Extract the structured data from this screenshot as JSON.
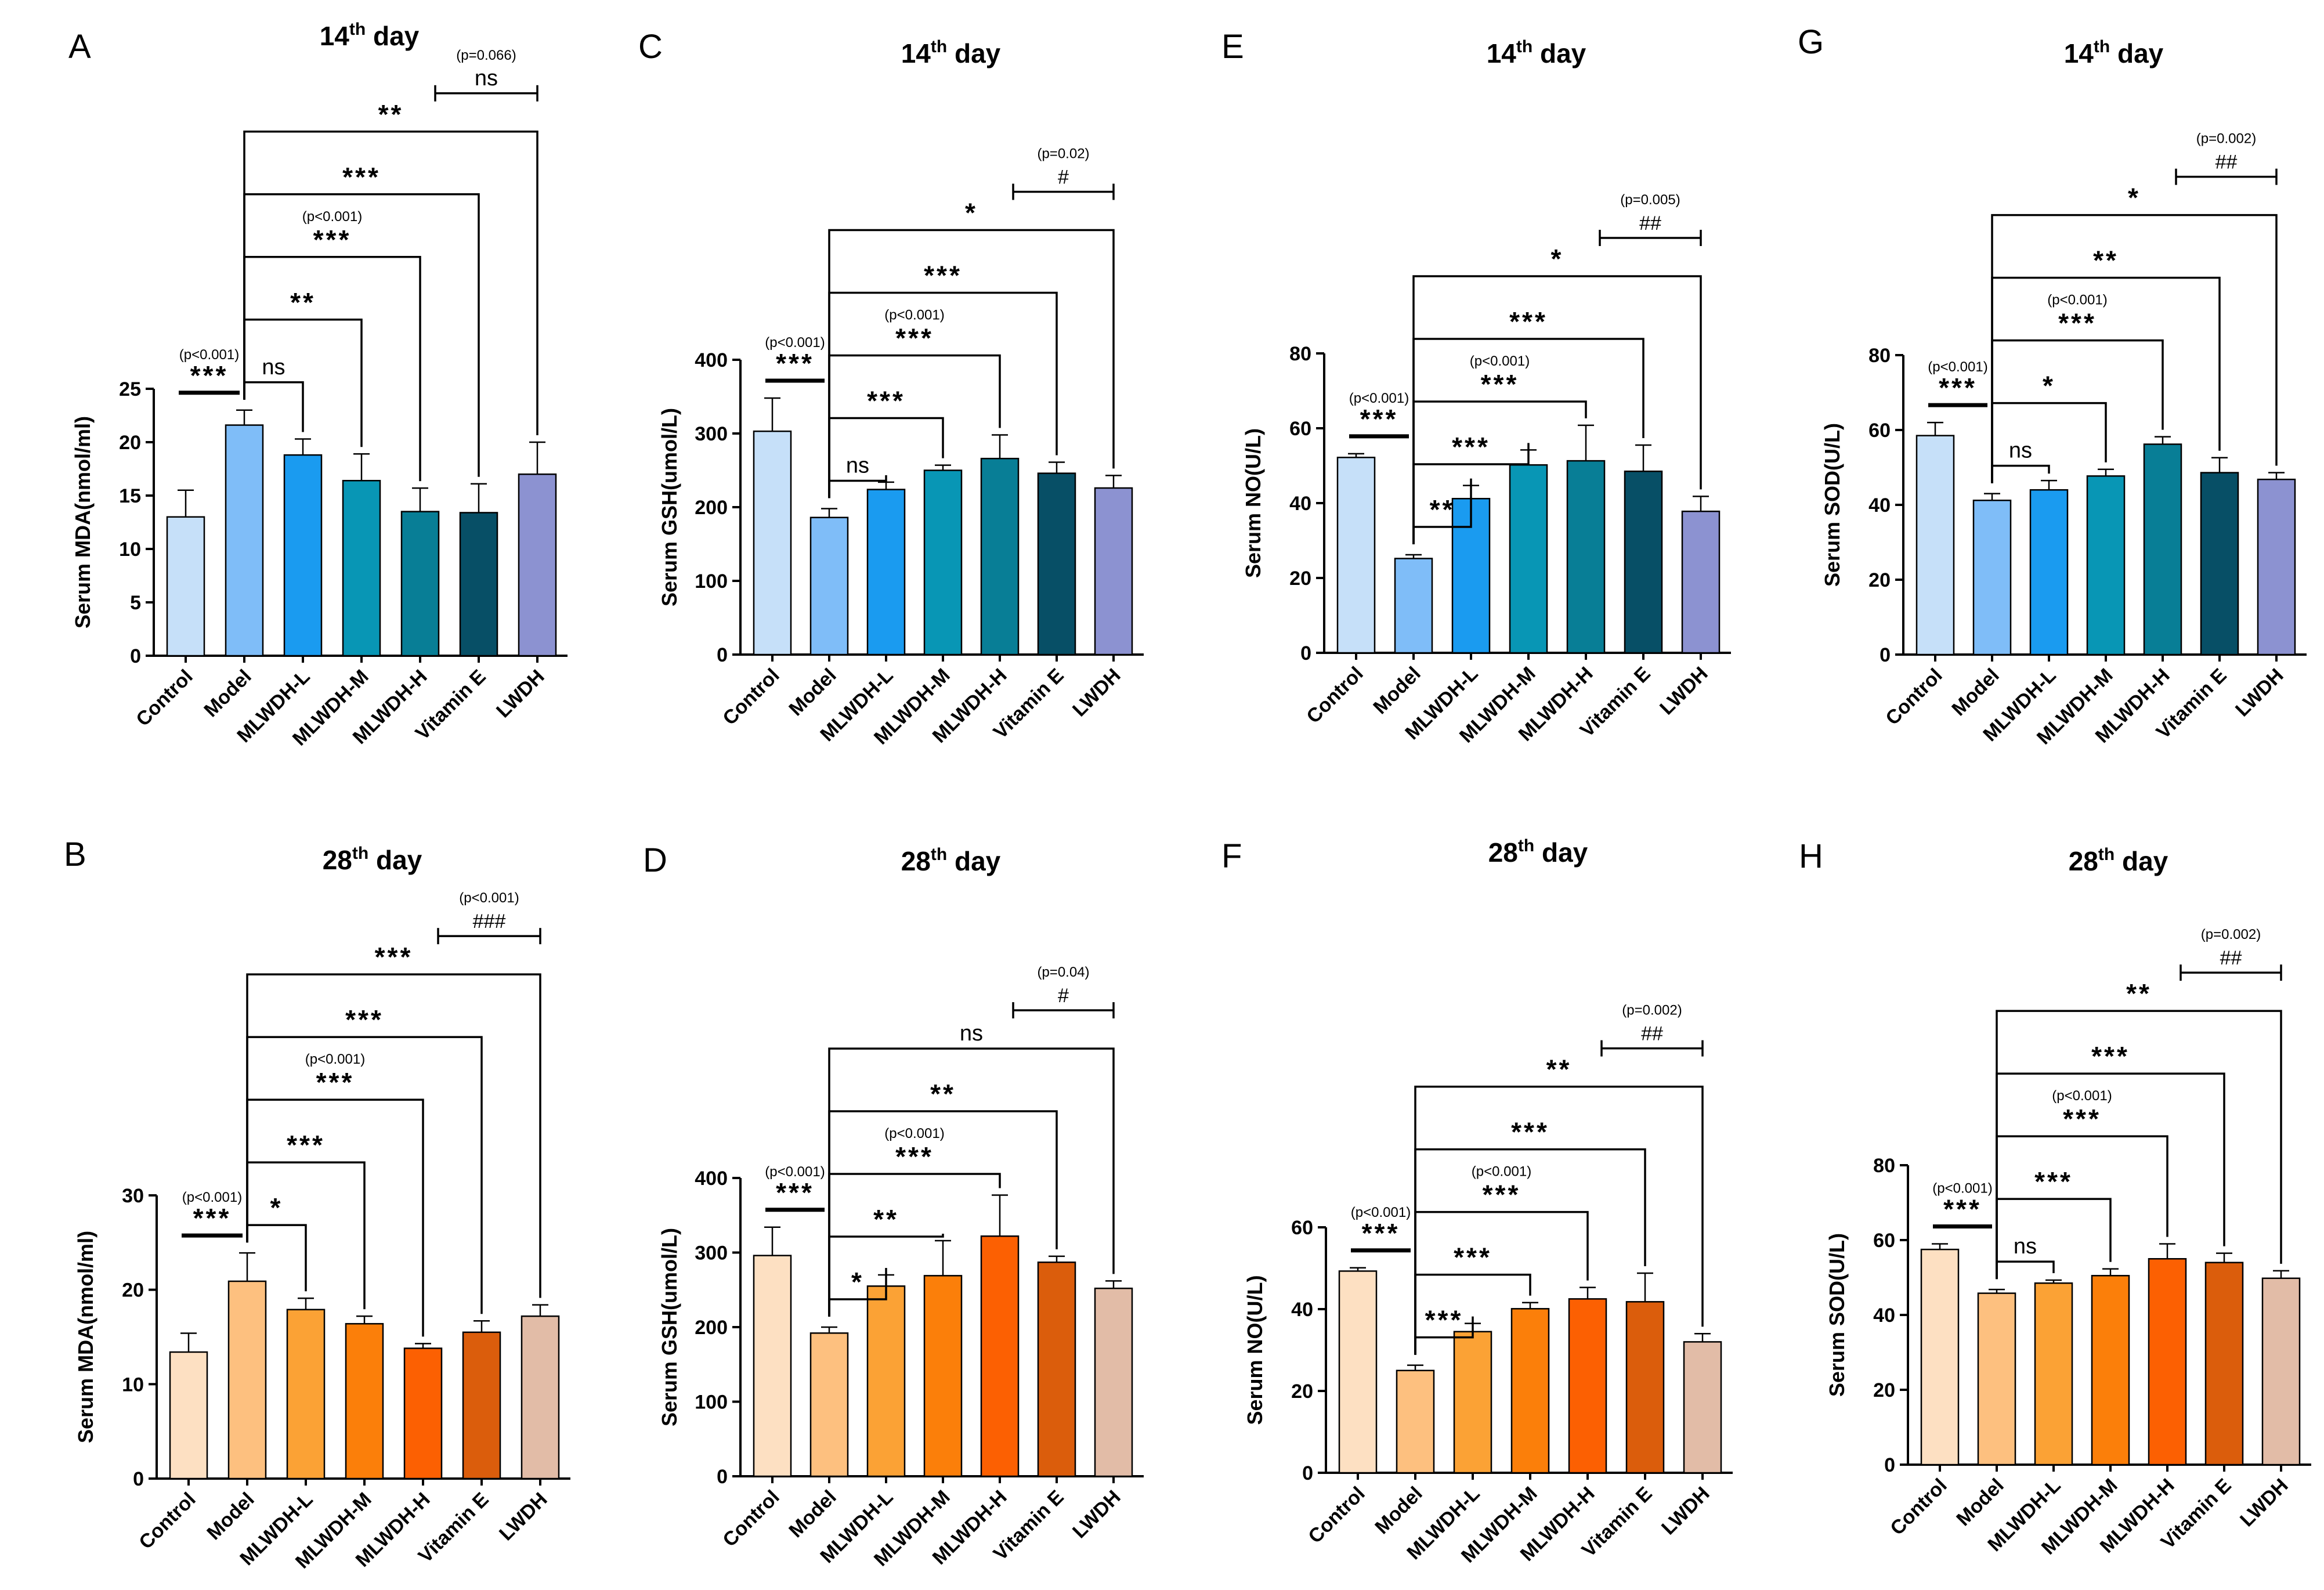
{
  "figure": {
    "categories": [
      "Control",
      "Model",
      "MLWDH-L",
      "MLWDH-M",
      "MLWDH-H",
      "Vitamin E",
      "LWDH"
    ],
    "day14_colors": [
      "#c6e0f9",
      "#7fbdf8",
      "#1a9bf0",
      "#0896b5",
      "#087e96",
      "#074f66",
      "#8c92d1"
    ],
    "day28_colors": [
      "#fde0c2",
      "#fdc07f",
      "#fba235",
      "#fb7f0a",
      "#fc6002",
      "#db5d0c",
      "#e2bca7"
    ]
  },
  "chart_data": [
    {
      "panel": "A",
      "type": "bar",
      "title": "14th day",
      "title_main": "14",
      "title_sup": "th",
      "title_rest": " day",
      "ylabel": "Serum MDA(nmol/ml)",
      "ylim": [
        0,
        25
      ],
      "yticks": [
        0,
        5,
        10,
        15,
        20,
        25
      ],
      "values": [
        13.0,
        21.6,
        18.8,
        16.4,
        13.5,
        13.4,
        17.0
      ],
      "errors": [
        2.5,
        1.4,
        1.5,
        2.5,
        2.2,
        2.7,
        3.0
      ],
      "annotations": [
        {
          "type": "control",
          "label": "***",
          "p": "(p<0.001)"
        },
        {
          "type": "model",
          "target": 2,
          "label": "ns"
        },
        {
          "type": "model",
          "target": 3,
          "label": "**"
        },
        {
          "type": "model",
          "target": 4,
          "label": "***",
          "p": "(p<0.001)"
        },
        {
          "type": "model",
          "target": 5,
          "label": "***"
        },
        {
          "type": "model",
          "target": 6,
          "label": "**"
        },
        {
          "type": "hash",
          "label": "ns",
          "p": "(p=0.066)"
        }
      ]
    },
    {
      "panel": "C",
      "type": "bar",
      "title": "14th day",
      "title_main": "14",
      "title_sup": "th",
      "title_rest": " day",
      "ylabel": "Serum GSH(umol/L)",
      "ylim": [
        0,
        400
      ],
      "yticks": [
        0,
        100,
        200,
        300,
        400
      ],
      "values": [
        303,
        186,
        224,
        250,
        266,
        246,
        226
      ],
      "errors": [
        45,
        12,
        10,
        7,
        32,
        15,
        17
      ],
      "annotations": [
        {
          "type": "control",
          "label": "***",
          "p": "(p<0.001)"
        },
        {
          "type": "model",
          "target": 2,
          "label": "ns"
        },
        {
          "type": "model",
          "target": 3,
          "label": "***"
        },
        {
          "type": "model",
          "target": 4,
          "label": "***",
          "p": "(p<0.001)"
        },
        {
          "type": "model",
          "target": 5,
          "label": "***"
        },
        {
          "type": "model",
          "target": 6,
          "label": "*"
        },
        {
          "type": "hash",
          "label": "#",
          "p": "(p=0.02)"
        }
      ]
    },
    {
      "panel": "E",
      "type": "bar",
      "title": "14th day",
      "title_main": "14",
      "title_sup": "th",
      "title_rest": " day",
      "ylabel": "Serum NO(U/L)",
      "ylim": [
        0,
        80
      ],
      "yticks": [
        0,
        20,
        40,
        60,
        80
      ],
      "values": [
        52.2,
        25.2,
        41.2,
        50.2,
        51.3,
        48.5,
        37.8
      ],
      "errors": [
        1.0,
        1.0,
        3.5,
        4.0,
        9.5,
        7.0,
        4.0
      ],
      "annotations": [
        {
          "type": "control",
          "label": "***",
          "p": "(p<0.001)"
        },
        {
          "type": "model",
          "target": 2,
          "label": "**"
        },
        {
          "type": "model",
          "target": 3,
          "label": "***"
        },
        {
          "type": "model",
          "target": 4,
          "label": "***",
          "p": "(p<0.001)"
        },
        {
          "type": "model",
          "target": 5,
          "label": "***"
        },
        {
          "type": "model",
          "target": 6,
          "label": "*"
        },
        {
          "type": "hash",
          "label": "##",
          "p": "(p=0.005)"
        }
      ]
    },
    {
      "panel": "G",
      "type": "bar",
      "title": "14th day",
      "title_main": "14",
      "title_sup": "th",
      "title_rest": " day",
      "ylabel": "Serum SOD(U/L)",
      "ylim": [
        0,
        80
      ],
      "yticks": [
        0,
        20,
        40,
        60,
        80
      ],
      "values": [
        58.5,
        41.2,
        44.0,
        47.7,
        56.2,
        48.6,
        46.8
      ],
      "errors": [
        3.5,
        1.8,
        2.5,
        1.8,
        2.0,
        4.0,
        1.8
      ],
      "annotations": [
        {
          "type": "control",
          "label": "***",
          "p": "(p<0.001)"
        },
        {
          "type": "model",
          "target": 2,
          "label": "ns"
        },
        {
          "type": "model",
          "target": 3,
          "label": "*"
        },
        {
          "type": "model",
          "target": 4,
          "label": "***",
          "p": "(p<0.001)"
        },
        {
          "type": "model",
          "target": 5,
          "label": "**"
        },
        {
          "type": "model",
          "target": 6,
          "label": "*"
        },
        {
          "type": "hash",
          "label": "##",
          "p": "(p=0.002)"
        }
      ]
    },
    {
      "panel": "B",
      "type": "bar",
      "title": "28th day",
      "title_main": "28",
      "title_sup": "th",
      "title_rest": " day",
      "ylabel": "Serum MDA(nmol/ml)",
      "ylim": [
        0,
        30
      ],
      "yticks": [
        0,
        10,
        20,
        30
      ],
      "values": [
        13.4,
        20.9,
        17.9,
        16.4,
        13.8,
        15.5,
        17.2
      ],
      "errors": [
        2.0,
        3.0,
        1.2,
        0.8,
        0.5,
        1.2,
        1.2
      ],
      "annotations": [
        {
          "type": "control",
          "label": "***",
          "p": "(p<0.001)"
        },
        {
          "type": "model",
          "target": 2,
          "label": "*"
        },
        {
          "type": "model",
          "target": 3,
          "label": "***"
        },
        {
          "type": "model",
          "target": 4,
          "label": "***",
          "p": "(p<0.001)"
        },
        {
          "type": "model",
          "target": 5,
          "label": "***"
        },
        {
          "type": "model",
          "target": 6,
          "label": "***"
        },
        {
          "type": "hash",
          "label": "###",
          "p": "(p<0.001)"
        }
      ]
    },
    {
      "panel": "D",
      "type": "bar",
      "title": "28th day",
      "title_main": "28",
      "title_sup": "th",
      "title_rest": " day",
      "ylabel": "Serum GSH(umol/L)",
      "ylim": [
        0,
        400
      ],
      "yticks": [
        0,
        100,
        200,
        300,
        400
      ],
      "values": [
        296,
        192,
        255,
        269,
        322,
        287,
        252
      ],
      "errors": [
        38,
        8,
        15,
        47,
        55,
        8,
        10
      ],
      "annotations": [
        {
          "type": "control",
          "label": "***",
          "p": "(p<0.001)"
        },
        {
          "type": "model",
          "target": 2,
          "label": "*"
        },
        {
          "type": "model",
          "target": 3,
          "label": "**"
        },
        {
          "type": "model",
          "target": 4,
          "label": "***",
          "p": "(p<0.001)"
        },
        {
          "type": "model",
          "target": 5,
          "label": "**"
        },
        {
          "type": "model",
          "target": 6,
          "label": "ns"
        },
        {
          "type": "hash",
          "label": "#",
          "p": "(p=0.04)"
        }
      ]
    },
    {
      "panel": "F",
      "type": "bar",
      "title": "28th day",
      "title_main": "28",
      "title_sup": "th",
      "title_rest": " day",
      "ylabel": "Serum NO(U/L)",
      "ylim": [
        0,
        60
      ],
      "yticks": [
        0,
        20,
        40,
        60
      ],
      "values": [
        49.3,
        25.0,
        34.5,
        40.1,
        42.5,
        41.8,
        32.0
      ],
      "errors": [
        0.8,
        1.3,
        2.0,
        1.5,
        2.8,
        7.0,
        2.0
      ],
      "annotations": [
        {
          "type": "control",
          "label": "***",
          "p": "(p<0.001)"
        },
        {
          "type": "model",
          "target": 2,
          "label": "***"
        },
        {
          "type": "model",
          "target": 3,
          "label": "***"
        },
        {
          "type": "model",
          "target": 4,
          "label": "***",
          "p": "(p<0.001)"
        },
        {
          "type": "model",
          "target": 5,
          "label": "***"
        },
        {
          "type": "model",
          "target": 6,
          "label": "**"
        },
        {
          "type": "hash",
          "label": "##",
          "p": "(p=0.002)"
        }
      ]
    },
    {
      "panel": "H",
      "type": "bar",
      "title": "28th day",
      "title_main": "28",
      "title_sup": "th",
      "title_rest": " day",
      "ylabel": "Serum SOD(U/L)",
      "ylim": [
        0,
        80
      ],
      "yticks": [
        0,
        20,
        40,
        60,
        80
      ],
      "values": [
        57.5,
        45.8,
        48.5,
        50.5,
        55.0,
        54.0,
        49.8
      ],
      "errors": [
        1.5,
        1.0,
        0.8,
        1.8,
        4.0,
        2.5,
        2.0
      ],
      "annotations": [
        {
          "type": "control",
          "label": "***",
          "p": "(p<0.001)"
        },
        {
          "type": "model",
          "target": 2,
          "label": "ns"
        },
        {
          "type": "model",
          "target": 3,
          "label": "***"
        },
        {
          "type": "model",
          "target": 4,
          "label": "***",
          "p": "(p<0.001)"
        },
        {
          "type": "model",
          "target": 5,
          "label": "***"
        },
        {
          "type": "model",
          "target": 6,
          "label": "**"
        },
        {
          "type": "hash",
          "label": "##",
          "p": "(p=0.002)"
        }
      ]
    }
  ]
}
